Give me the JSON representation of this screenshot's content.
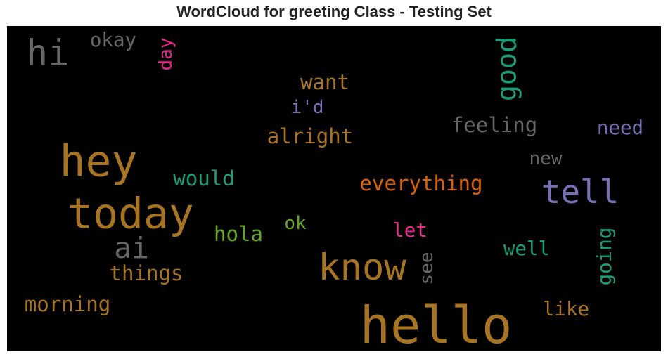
{
  "chart_data": {
    "type": "wordcloud",
    "title": "WordCloud for greeting Class - Testing Set",
    "background": "#000000",
    "words": [
      {
        "text": "hello",
        "weight": 1.0,
        "color": "#a77423",
        "rotate": 0
      },
      {
        "text": "hey",
        "weight": 0.86,
        "color": "#a77423",
        "rotate": 0
      },
      {
        "text": "today",
        "weight": 0.84,
        "color": "#a77423",
        "rotate": 0
      },
      {
        "text": "know",
        "weight": 0.74,
        "color": "#a77423",
        "rotate": 0
      },
      {
        "text": "hi",
        "weight": 0.72,
        "color": "#666666",
        "rotate": 0
      },
      {
        "text": "tell",
        "weight": 0.66,
        "color": "#7570b3",
        "rotate": 0
      },
      {
        "text": "ai",
        "weight": 0.6,
        "color": "#666666",
        "rotate": 0
      },
      {
        "text": "good",
        "weight": 0.56,
        "color": "#1b9e77",
        "rotate": -90
      },
      {
        "text": "everything",
        "weight": 0.44,
        "color": "#d95f02",
        "rotate": 0
      },
      {
        "text": "feeling",
        "weight": 0.44,
        "color": "#666666",
        "rotate": 0
      },
      {
        "text": "alright",
        "weight": 0.44,
        "color": "#a77423",
        "rotate": 0
      },
      {
        "text": "would",
        "weight": 0.44,
        "color": "#1b9e77",
        "rotate": 0
      },
      {
        "text": "want",
        "weight": 0.44,
        "color": "#a77423",
        "rotate": 0
      },
      {
        "text": "things",
        "weight": 0.44,
        "color": "#a77423",
        "rotate": 0
      },
      {
        "text": "morning",
        "weight": 0.44,
        "color": "#a77423",
        "rotate": 0
      },
      {
        "text": "hola",
        "weight": 0.44,
        "color": "#66a61e",
        "rotate": 0
      },
      {
        "text": "need",
        "weight": 0.42,
        "color": "#7570b3",
        "rotate": 0
      },
      {
        "text": "going",
        "weight": 0.42,
        "color": "#1b9e77",
        "rotate": -90
      },
      {
        "text": "okay",
        "weight": 0.42,
        "color": "#666666",
        "rotate": 0
      },
      {
        "text": "well",
        "weight": 0.42,
        "color": "#1b9e77",
        "rotate": 0
      },
      {
        "text": "like",
        "weight": 0.42,
        "color": "#a77423",
        "rotate": 0
      },
      {
        "text": "let",
        "weight": 0.42,
        "color": "#e7298a",
        "rotate": 0
      },
      {
        "text": "new",
        "weight": 0.4,
        "color": "#666666",
        "rotate": 0
      },
      {
        "text": "day",
        "weight": 0.4,
        "color": "#e7298a",
        "rotate": -90
      },
      {
        "text": "i'd",
        "weight": 0.4,
        "color": "#7570b3",
        "rotate": 0
      },
      {
        "text": "ok",
        "weight": 0.4,
        "color": "#66a61e",
        "rotate": 0
      },
      {
        "text": "see",
        "weight": 0.4,
        "color": "#666666",
        "rotate": -90
      }
    ]
  }
}
